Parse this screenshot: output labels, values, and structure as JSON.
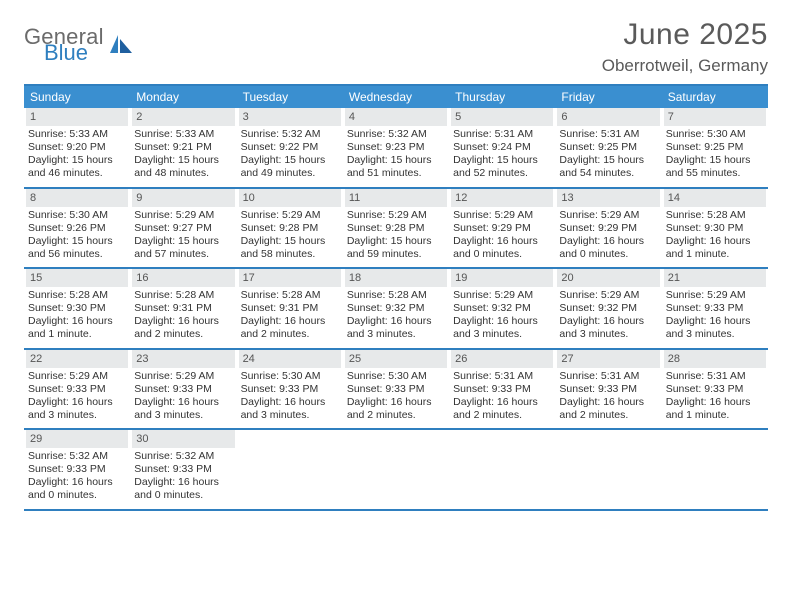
{
  "brand": {
    "word1": "General",
    "word2": "Blue"
  },
  "title": {
    "month": "June 2025",
    "location": "Oberrotweil, Germany"
  },
  "colors": {
    "header_bg": "#3a8fd0",
    "accent_line": "#2f7fbf",
    "daynum_bg": "#e7e9ea",
    "text": "#333333",
    "title_text": "#5a5a5a",
    "logo_gray": "#6b6b6b",
    "logo_blue": "#2f7fbf"
  },
  "daynames": [
    "Sunday",
    "Monday",
    "Tuesday",
    "Wednesday",
    "Thursday",
    "Friday",
    "Saturday"
  ],
  "weeks": [
    [
      {
        "n": "1",
        "sr": "Sunrise: 5:33 AM",
        "ss": "Sunset: 9:20 PM",
        "d1": "Daylight: 15 hours",
        "d2": "and 46 minutes."
      },
      {
        "n": "2",
        "sr": "Sunrise: 5:33 AM",
        "ss": "Sunset: 9:21 PM",
        "d1": "Daylight: 15 hours",
        "d2": "and 48 minutes."
      },
      {
        "n": "3",
        "sr": "Sunrise: 5:32 AM",
        "ss": "Sunset: 9:22 PM",
        "d1": "Daylight: 15 hours",
        "d2": "and 49 minutes."
      },
      {
        "n": "4",
        "sr": "Sunrise: 5:32 AM",
        "ss": "Sunset: 9:23 PM",
        "d1": "Daylight: 15 hours",
        "d2": "and 51 minutes."
      },
      {
        "n": "5",
        "sr": "Sunrise: 5:31 AM",
        "ss": "Sunset: 9:24 PM",
        "d1": "Daylight: 15 hours",
        "d2": "and 52 minutes."
      },
      {
        "n": "6",
        "sr": "Sunrise: 5:31 AM",
        "ss": "Sunset: 9:25 PM",
        "d1": "Daylight: 15 hours",
        "d2": "and 54 minutes."
      },
      {
        "n": "7",
        "sr": "Sunrise: 5:30 AM",
        "ss": "Sunset: 9:25 PM",
        "d1": "Daylight: 15 hours",
        "d2": "and 55 minutes."
      }
    ],
    [
      {
        "n": "8",
        "sr": "Sunrise: 5:30 AM",
        "ss": "Sunset: 9:26 PM",
        "d1": "Daylight: 15 hours",
        "d2": "and 56 minutes."
      },
      {
        "n": "9",
        "sr": "Sunrise: 5:29 AM",
        "ss": "Sunset: 9:27 PM",
        "d1": "Daylight: 15 hours",
        "d2": "and 57 minutes."
      },
      {
        "n": "10",
        "sr": "Sunrise: 5:29 AM",
        "ss": "Sunset: 9:28 PM",
        "d1": "Daylight: 15 hours",
        "d2": "and 58 minutes."
      },
      {
        "n": "11",
        "sr": "Sunrise: 5:29 AM",
        "ss": "Sunset: 9:28 PM",
        "d1": "Daylight: 15 hours",
        "d2": "and 59 minutes."
      },
      {
        "n": "12",
        "sr": "Sunrise: 5:29 AM",
        "ss": "Sunset: 9:29 PM",
        "d1": "Daylight: 16 hours",
        "d2": "and 0 minutes."
      },
      {
        "n": "13",
        "sr": "Sunrise: 5:29 AM",
        "ss": "Sunset: 9:29 PM",
        "d1": "Daylight: 16 hours",
        "d2": "and 0 minutes."
      },
      {
        "n": "14",
        "sr": "Sunrise: 5:28 AM",
        "ss": "Sunset: 9:30 PM",
        "d1": "Daylight: 16 hours",
        "d2": "and 1 minute."
      }
    ],
    [
      {
        "n": "15",
        "sr": "Sunrise: 5:28 AM",
        "ss": "Sunset: 9:30 PM",
        "d1": "Daylight: 16 hours",
        "d2": "and 1 minute."
      },
      {
        "n": "16",
        "sr": "Sunrise: 5:28 AM",
        "ss": "Sunset: 9:31 PM",
        "d1": "Daylight: 16 hours",
        "d2": "and 2 minutes."
      },
      {
        "n": "17",
        "sr": "Sunrise: 5:28 AM",
        "ss": "Sunset: 9:31 PM",
        "d1": "Daylight: 16 hours",
        "d2": "and 2 minutes."
      },
      {
        "n": "18",
        "sr": "Sunrise: 5:28 AM",
        "ss": "Sunset: 9:32 PM",
        "d1": "Daylight: 16 hours",
        "d2": "and 3 minutes."
      },
      {
        "n": "19",
        "sr": "Sunrise: 5:29 AM",
        "ss": "Sunset: 9:32 PM",
        "d1": "Daylight: 16 hours",
        "d2": "and 3 minutes."
      },
      {
        "n": "20",
        "sr": "Sunrise: 5:29 AM",
        "ss": "Sunset: 9:32 PM",
        "d1": "Daylight: 16 hours",
        "d2": "and 3 minutes."
      },
      {
        "n": "21",
        "sr": "Sunrise: 5:29 AM",
        "ss": "Sunset: 9:33 PM",
        "d1": "Daylight: 16 hours",
        "d2": "and 3 minutes."
      }
    ],
    [
      {
        "n": "22",
        "sr": "Sunrise: 5:29 AM",
        "ss": "Sunset: 9:33 PM",
        "d1": "Daylight: 16 hours",
        "d2": "and 3 minutes."
      },
      {
        "n": "23",
        "sr": "Sunrise: 5:29 AM",
        "ss": "Sunset: 9:33 PM",
        "d1": "Daylight: 16 hours",
        "d2": "and 3 minutes."
      },
      {
        "n": "24",
        "sr": "Sunrise: 5:30 AM",
        "ss": "Sunset: 9:33 PM",
        "d1": "Daylight: 16 hours",
        "d2": "and 3 minutes."
      },
      {
        "n": "25",
        "sr": "Sunrise: 5:30 AM",
        "ss": "Sunset: 9:33 PM",
        "d1": "Daylight: 16 hours",
        "d2": "and 2 minutes."
      },
      {
        "n": "26",
        "sr": "Sunrise: 5:31 AM",
        "ss": "Sunset: 9:33 PM",
        "d1": "Daylight: 16 hours",
        "d2": "and 2 minutes."
      },
      {
        "n": "27",
        "sr": "Sunrise: 5:31 AM",
        "ss": "Sunset: 9:33 PM",
        "d1": "Daylight: 16 hours",
        "d2": "and 2 minutes."
      },
      {
        "n": "28",
        "sr": "Sunrise: 5:31 AM",
        "ss": "Sunset: 9:33 PM",
        "d1": "Daylight: 16 hours",
        "d2": "and 1 minute."
      }
    ],
    [
      {
        "n": "29",
        "sr": "Sunrise: 5:32 AM",
        "ss": "Sunset: 9:33 PM",
        "d1": "Daylight: 16 hours",
        "d2": "and 0 minutes."
      },
      {
        "n": "30",
        "sr": "Sunrise: 5:32 AM",
        "ss": "Sunset: 9:33 PM",
        "d1": "Daylight: 16 hours",
        "d2": "and 0 minutes."
      },
      null,
      null,
      null,
      null,
      null
    ]
  ]
}
